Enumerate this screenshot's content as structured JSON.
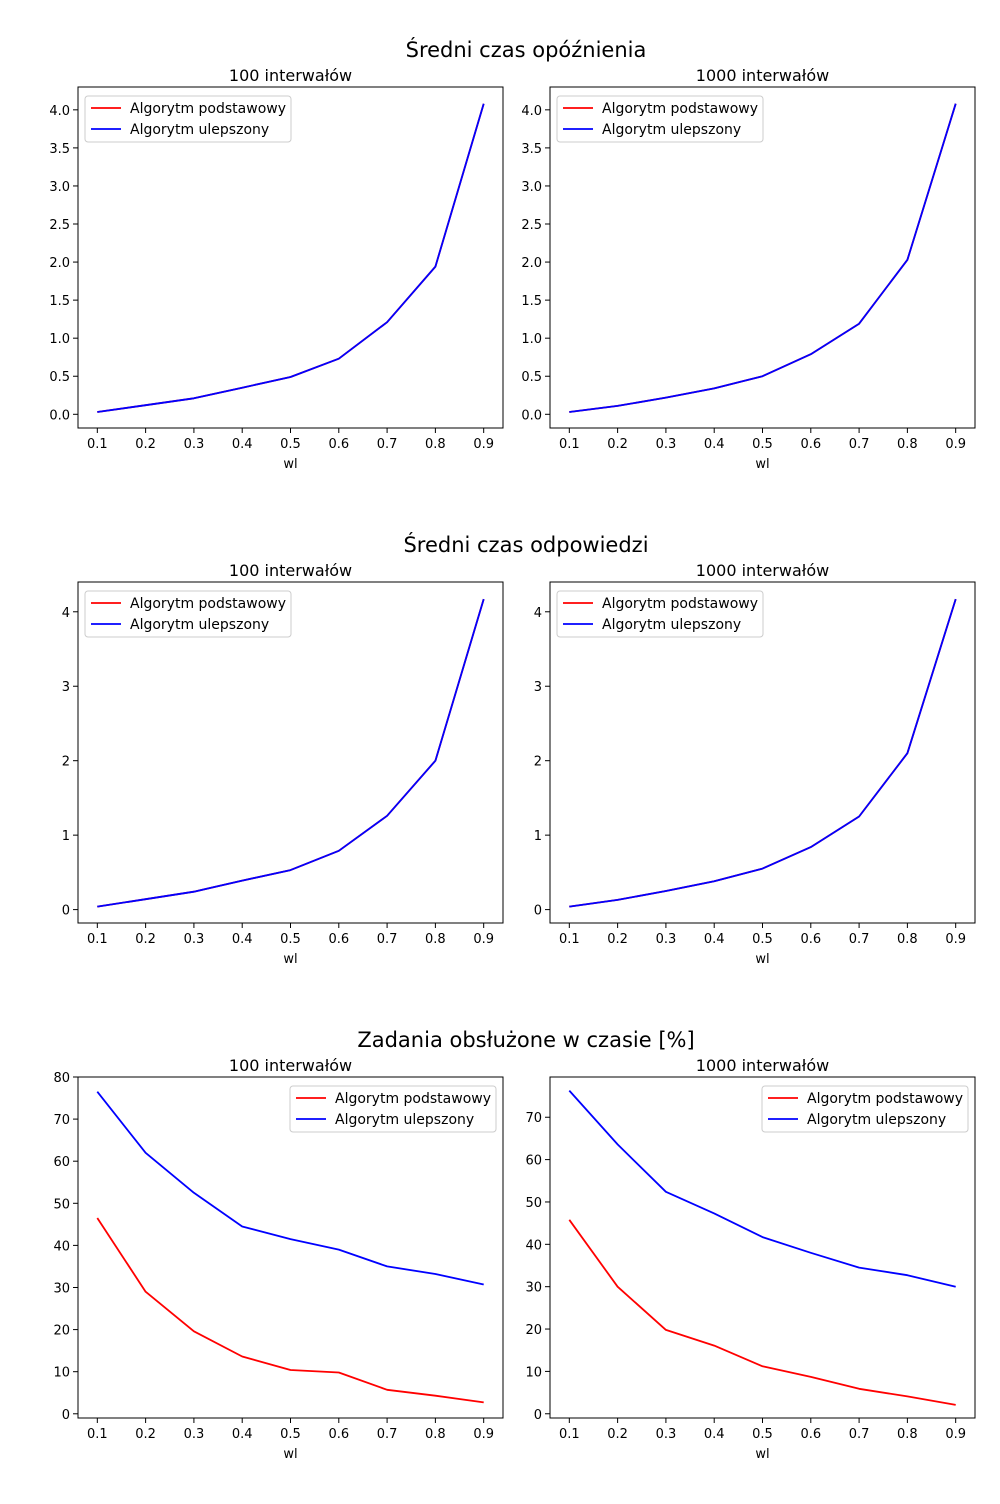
{
  "figure": {
    "rows": [
      {
        "title": "Średni czas opóźnienia"
      },
      {
        "title": "Średni czas odpowiedzi"
      },
      {
        "title": "Zadania obsłużone w czasie [%]"
      }
    ]
  },
  "colors": {
    "basic": "#ff0000",
    "improved": "#0000ff"
  },
  "chart_data": [
    {
      "type": "line",
      "title": "100 interwałów",
      "xlabel": "wl",
      "ylabel": "",
      "x": [
        0.1,
        0.2,
        0.3,
        0.4,
        0.5,
        0.6,
        0.7,
        0.8,
        0.9
      ],
      "xticks": [
        "0.1",
        "0.2",
        "0.3",
        "0.4",
        "0.5",
        "0.6",
        "0.7",
        "0.8",
        "0.9"
      ],
      "ylim": [
        -0.18,
        4.3
      ],
      "yticks": [
        "0.0",
        "0.5",
        "1.0",
        "1.5",
        "2.0",
        "2.5",
        "3.0",
        "3.5",
        "4.0"
      ],
      "legend": "upper-left",
      "series": [
        {
          "name": "Algorytm podstawowy",
          "values": [
            0.03,
            0.12,
            0.21,
            0.35,
            0.49,
            0.73,
            1.21,
            1.94,
            4.08
          ]
        },
        {
          "name": "Algorytm ulepszony",
          "values": [
            0.03,
            0.12,
            0.21,
            0.35,
            0.49,
            0.73,
            1.21,
            1.94,
            4.08
          ]
        }
      ]
    },
    {
      "type": "line",
      "title": "1000 interwałów",
      "xlabel": "wl",
      "ylabel": "",
      "x": [
        0.1,
        0.2,
        0.3,
        0.4,
        0.5,
        0.6,
        0.7,
        0.8,
        0.9
      ],
      "xticks": [
        "0.1",
        "0.2",
        "0.3",
        "0.4",
        "0.5",
        "0.6",
        "0.7",
        "0.8",
        "0.9"
      ],
      "ylim": [
        -0.18,
        4.3
      ],
      "yticks": [
        "0.0",
        "0.5",
        "1.0",
        "1.5",
        "2.0",
        "2.5",
        "3.0",
        "3.5",
        "4.0"
      ],
      "legend": "upper-left",
      "series": [
        {
          "name": "Algorytm podstawowy",
          "values": [
            0.03,
            0.11,
            0.22,
            0.34,
            0.5,
            0.79,
            1.19,
            2.03,
            4.08
          ]
        },
        {
          "name": "Algorytm ulepszony",
          "values": [
            0.03,
            0.11,
            0.22,
            0.34,
            0.5,
            0.79,
            1.19,
            2.03,
            4.08
          ]
        }
      ]
    },
    {
      "type": "line",
      "title": "100 interwałów",
      "xlabel": "wl",
      "ylabel": "",
      "x": [
        0.1,
        0.2,
        0.3,
        0.4,
        0.5,
        0.6,
        0.7,
        0.8,
        0.9
      ],
      "xticks": [
        "0.1",
        "0.2",
        "0.3",
        "0.4",
        "0.5",
        "0.6",
        "0.7",
        "0.8",
        "0.9"
      ],
      "ylim": [
        -0.18,
        4.4
      ],
      "yticks": [
        "0",
        "1",
        "2",
        "3",
        "4"
      ],
      "legend": "upper-left",
      "series": [
        {
          "name": "Algorytm podstawowy",
          "values": [
            0.04,
            0.14,
            0.24,
            0.39,
            0.53,
            0.79,
            1.26,
            2.0,
            4.17
          ]
        },
        {
          "name": "Algorytm ulepszony",
          "values": [
            0.04,
            0.14,
            0.24,
            0.39,
            0.53,
            0.79,
            1.26,
            2.0,
            4.17
          ]
        }
      ]
    },
    {
      "type": "line",
      "title": "1000 interwałów",
      "xlabel": "wl",
      "ylabel": "",
      "x": [
        0.1,
        0.2,
        0.3,
        0.4,
        0.5,
        0.6,
        0.7,
        0.8,
        0.9
      ],
      "xticks": [
        "0.1",
        "0.2",
        "0.3",
        "0.4",
        "0.5",
        "0.6",
        "0.7",
        "0.8",
        "0.9"
      ],
      "ylim": [
        -0.18,
        4.4
      ],
      "yticks": [
        "0",
        "1",
        "2",
        "3",
        "4"
      ],
      "legend": "upper-left",
      "series": [
        {
          "name": "Algorytm podstawowy",
          "values": [
            0.04,
            0.13,
            0.25,
            0.38,
            0.55,
            0.84,
            1.25,
            2.1,
            4.17
          ]
        },
        {
          "name": "Algorytm ulepszony",
          "values": [
            0.04,
            0.13,
            0.25,
            0.38,
            0.55,
            0.84,
            1.25,
            2.1,
            4.17
          ]
        }
      ]
    },
    {
      "type": "line",
      "title": "100 interwałów",
      "xlabel": "wl",
      "ylabel": "",
      "x": [
        0.1,
        0.2,
        0.3,
        0.4,
        0.5,
        0.6,
        0.7,
        0.8,
        0.9
      ],
      "xticks": [
        "0.1",
        "0.2",
        "0.3",
        "0.4",
        "0.5",
        "0.6",
        "0.7",
        "0.8",
        "0.9"
      ],
      "ylim": [
        -1.0,
        80.0
      ],
      "yticks": [
        "0",
        "10",
        "20",
        "30",
        "40",
        "50",
        "60",
        "70",
        "80"
      ],
      "legend": "upper-right",
      "series": [
        {
          "name": "Algorytm podstawowy",
          "values": [
            46.5,
            29.0,
            19.6,
            13.6,
            10.4,
            9.8,
            5.7,
            4.3,
            2.7
          ]
        },
        {
          "name": "Algorytm ulepszony",
          "values": [
            76.5,
            62.0,
            52.5,
            44.5,
            41.5,
            39.0,
            35.0,
            33.2,
            30.7
          ]
        }
      ]
    },
    {
      "type": "line",
      "title": "1000 interwałów",
      "xlabel": "wl",
      "ylabel": "",
      "x": [
        0.1,
        0.2,
        0.3,
        0.4,
        0.5,
        0.6,
        0.7,
        0.8,
        0.9
      ],
      "xticks": [
        "0.1",
        "0.2",
        "0.3",
        "0.4",
        "0.5",
        "0.6",
        "0.7",
        "0.8",
        "0.9"
      ],
      "ylim": [
        -1.0,
        79.5
      ],
      "yticks": [
        "0",
        "10",
        "20",
        "30",
        "40",
        "50",
        "60",
        "70"
      ],
      "legend": "upper-right",
      "series": [
        {
          "name": "Algorytm podstawowy",
          "values": [
            45.8,
            30.0,
            19.8,
            16.1,
            11.2,
            8.7,
            5.9,
            4.1,
            2.1
          ]
        },
        {
          "name": "Algorytm ulepszony",
          "values": [
            76.3,
            63.6,
            52.4,
            47.3,
            41.7,
            38.0,
            34.5,
            32.7,
            30.0
          ]
        }
      ]
    }
  ]
}
